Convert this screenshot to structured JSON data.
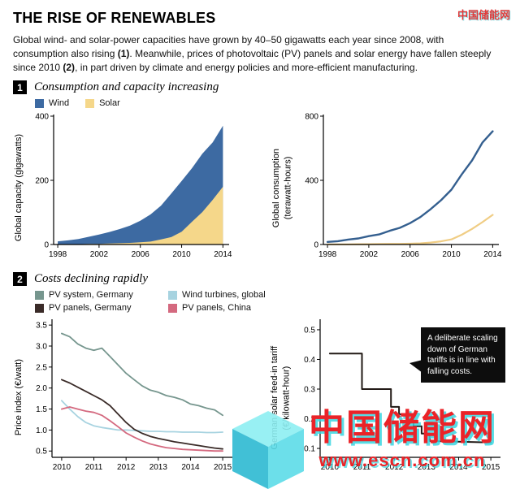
{
  "header": {
    "title": "THE RISE OF RENEWABLES",
    "intro": {
      "p1": "Global wind- and solar-power capacities have grown by 40–50 gigawatts each year since 2008, with consumption also rising ",
      "b1": "(1)",
      "p2": ". Meanwhile, prices of photovoltaic (PV) panels and solar energy have fallen steeply since 2010 ",
      "b2": "(2)",
      "p3": ", in part driven by climate and energy policies and more-efficient manufacturing."
    }
  },
  "section1": {
    "number": "1",
    "title": "Consumption and capacity increasing",
    "legend": [
      {
        "label": "Wind",
        "color": "#3d6aa2"
      },
      {
        "label": "Solar",
        "color": "#f5d78a"
      }
    ]
  },
  "section2": {
    "number": "2",
    "title": "Costs declining rapidly",
    "legend": [
      {
        "label": "PV system, Germany",
        "color": "#76968e"
      },
      {
        "label": "Wind turbines, global",
        "color": "#a7d3e0"
      },
      {
        "label": "PV panels, Germany",
        "color": "#3a2b28"
      },
      {
        "label": "PV panels, China",
        "color": "#d4697f"
      }
    ]
  },
  "annotation": {
    "text": "A deliberate scaling down of German tariffs is in line with falling costs."
  },
  "watermark": {
    "name": "中国储能网",
    "url": "www.escn.com.cn",
    "red": "#ea2328",
    "cyan": "#39d6e0"
  },
  "chart_data": [
    {
      "id": "capacity",
      "type": "area",
      "ylabel": "Global capacity (gigawatts)",
      "xlim": [
        1997.6,
        2014.6
      ],
      "ylim": [
        0,
        400
      ],
      "yticks": [
        {
          "v": 0,
          "label": "0"
        },
        {
          "v": 200,
          "label": "200"
        },
        {
          "v": 400,
          "label": "400"
        }
      ],
      "xticks": [
        {
          "v": 1998,
          "label": "1998"
        },
        {
          "v": 2002,
          "label": "2002"
        },
        {
          "v": 2006,
          "label": "2006"
        },
        {
          "v": 2010,
          "label": "2010"
        },
        {
          "v": 2014,
          "label": "2014"
        }
      ],
      "x": [
        1998,
        1999,
        2000,
        2001,
        2002,
        2003,
        2004,
        2005,
        2006,
        2007,
        2008,
        2009,
        2010,
        2011,
        2012,
        2013,
        2014
      ],
      "series": [
        {
          "name": "Wind",
          "color": "#3d6aa2",
          "fill": true,
          "values": [
            10,
            13,
            17,
            24,
            31,
            39,
            48,
            59,
            74,
            94,
            121,
            159,
            198,
            238,
            283,
            318,
            370
          ]
        },
        {
          "name": "Solar",
          "color": "#f5d78a",
          "fill": true,
          "values": [
            1,
            1,
            1,
            2,
            2,
            3,
            4,
            5,
            7,
            9,
            16,
            23,
            40,
            71,
            101,
            139,
            180
          ]
        }
      ]
    },
    {
      "id": "consumption",
      "type": "line",
      "ylabel": "Global consumption\n(terawatt-hours)",
      "xlim": [
        1997.6,
        2014.6
      ],
      "ylim": [
        0,
        800
      ],
      "yticks": [
        {
          "v": 0,
          "label": "0"
        },
        {
          "v": 400,
          "label": "400"
        },
        {
          "v": 800,
          "label": "800"
        }
      ],
      "xticks": [
        {
          "v": 1998,
          "label": "1998"
        },
        {
          "v": 2002,
          "label": "2002"
        },
        {
          "v": 2006,
          "label": "2006"
        },
        {
          "v": 2010,
          "label": "2010"
        },
        {
          "v": 2014,
          "label": "2014"
        }
      ],
      "x": [
        1998,
        1999,
        2000,
        2001,
        2002,
        2003,
        2004,
        2005,
        2006,
        2007,
        2008,
        2009,
        2010,
        2011,
        2012,
        2013,
        2014
      ],
      "series": [
        {
          "name": "Wind",
          "color": "#345f8f",
          "width": 2.4,
          "values": [
            16,
            21,
            31,
            38,
            52,
            63,
            85,
            104,
            133,
            171,
            221,
            276,
            342,
            437,
            524,
            635,
            706
          ]
        },
        {
          "name": "Solar",
          "color": "#f0cd84",
          "width": 2.2,
          "values": [
            1,
            1,
            1,
            2,
            2,
            3,
            4,
            4,
            5,
            7,
            12,
            20,
            32,
            61,
            97,
            139,
            185
          ]
        }
      ]
    },
    {
      "id": "price",
      "type": "line",
      "ylabel": "Price index (€/watt)",
      "xlim": [
        2009.7,
        2015.3
      ],
      "ylim": [
        0.35,
        3.6
      ],
      "yticks": [
        {
          "v": 0.5,
          "label": "0.5"
        },
        {
          "v": 1.0,
          "label": "1.0"
        },
        {
          "v": 1.5,
          "label": "1.5"
        },
        {
          "v": 2.0,
          "label": "2.0"
        },
        {
          "v": 2.5,
          "label": "2.5"
        },
        {
          "v": 3.0,
          "label": "3.0"
        },
        {
          "v": 3.5,
          "label": "3.5"
        }
      ],
      "xticks": [
        {
          "v": 2010,
          "label": "2010"
        },
        {
          "v": 2011,
          "label": "2011"
        },
        {
          "v": 2012,
          "label": "2012"
        },
        {
          "v": 2013,
          "label": "2013"
        },
        {
          "v": 2014,
          "label": "2014"
        },
        {
          "v": 2015,
          "label": "2015"
        }
      ],
      "x": [
        2010,
        2010.25,
        2010.5,
        2010.75,
        2011,
        2011.25,
        2011.5,
        2011.75,
        2012,
        2012.25,
        2012.5,
        2012.75,
        2013,
        2013.25,
        2013.5,
        2013.75,
        2014,
        2014.25,
        2014.5,
        2014.75,
        2015
      ],
      "series": [
        {
          "name": "PV system, Germany",
          "color": "#76968e",
          "width": 1.8,
          "values": [
            3.3,
            3.22,
            3.05,
            2.95,
            2.9,
            2.95,
            2.75,
            2.55,
            2.35,
            2.2,
            2.05,
            1.95,
            1.9,
            1.82,
            1.78,
            1.72,
            1.62,
            1.58,
            1.52,
            1.48,
            1.35
          ]
        },
        {
          "name": "Wind turbines, global",
          "color": "#a7d3e0",
          "width": 1.8,
          "values": [
            1.7,
            1.5,
            1.32,
            1.18,
            1.1,
            1.06,
            1.03,
            1.0,
            1.0,
            0.99,
            0.98,
            0.97,
            0.97,
            0.96,
            0.96,
            0.95,
            0.95,
            0.95,
            0.94,
            0.94,
            0.95
          ]
        },
        {
          "name": "PV panels, China",
          "color": "#d4697f",
          "width": 1.8,
          "values": [
            1.5,
            1.55,
            1.5,
            1.45,
            1.42,
            1.35,
            1.22,
            1.08,
            0.93,
            0.83,
            0.74,
            0.67,
            0.62,
            0.58,
            0.56,
            0.54,
            0.53,
            0.52,
            0.51,
            0.5,
            0.5
          ]
        },
        {
          "name": "PV panels, Germany",
          "color": "#3a2b28",
          "width": 1.8,
          "values": [
            2.2,
            2.12,
            2.02,
            1.92,
            1.82,
            1.72,
            1.58,
            1.38,
            1.18,
            1.02,
            0.92,
            0.85,
            0.8,
            0.76,
            0.72,
            0.69,
            0.66,
            0.63,
            0.6,
            0.57,
            0.55
          ]
        }
      ]
    },
    {
      "id": "tariff",
      "type": "line",
      "ylabel": "German solar feed-in tariff\n(€/kilowatt-hour)",
      "xlim": [
        2009.7,
        2015.3
      ],
      "ylim": [
        0.07,
        0.53
      ],
      "yticks": [
        {
          "v": 0.1,
          "label": "0.1"
        },
        {
          "v": 0.2,
          "label": "0.2"
        },
        {
          "v": 0.3,
          "label": "0.3"
        },
        {
          "v": 0.4,
          "label": "0.4"
        },
        {
          "v": 0.5,
          "label": "0.5"
        }
      ],
      "xticks": [
        {
          "v": 2010,
          "label": "2010"
        },
        {
          "v": 2011,
          "label": "2011"
        },
        {
          "v": 2012,
          "label": "2012"
        },
        {
          "v": 2013,
          "label": "2013"
        },
        {
          "v": 2014,
          "label": "2014"
        },
        {
          "v": 2015,
          "label": "2015"
        }
      ],
      "series": [
        {
          "name": "German solar feed-in tariff",
          "color": "#221a16",
          "width": 2,
          "x": [
            2010,
            2011.0,
            2011.0,
            2011.9,
            2011.9,
            2012.15,
            2012.15,
            2012.4,
            2012.4,
            2012.6,
            2012.6,
            2012.85,
            2012.85,
            2013.1,
            2013.1,
            2015
          ],
          "values": [
            0.42,
            0.42,
            0.3,
            0.3,
            0.24,
            0.24,
            0.215,
            0.215,
            0.195,
            0.195,
            0.175,
            0.175,
            0.15,
            0.15,
            0.125,
            0.12
          ]
        }
      ]
    }
  ]
}
